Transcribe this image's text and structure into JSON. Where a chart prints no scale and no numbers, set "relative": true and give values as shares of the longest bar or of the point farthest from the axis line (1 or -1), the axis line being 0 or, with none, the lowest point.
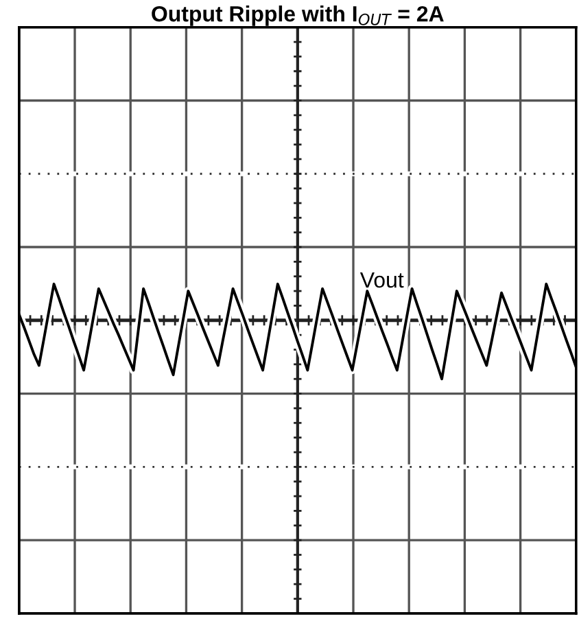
{
  "chart_data": {
    "type": "line",
    "title": "Output Ripple with I$_{OUT}$ = 2A",
    "relative": true,
    "grid": true,
    "categories": [
      null,
      null,
      null,
      null,
      null,
      null,
      null,
      null,
      null,
      null,
      null,
      null,
      null,
      null,
      null,
      null,
      null,
      null,
      null,
      null,
      null,
      null,
      null,
      null,
      null,
      null,
      null,
      null,
      null,
      null,
      null,
      null,
      null,
      null,
      null,
      null,
      null,
      null,
      null,
      null,
      null,
      null,
      null,
      null,
      null,
      null,
      null,
      null,
      null,
      null,
      null,
      null,
      null,
      null,
      null,
      null,
      null,
      null,
      null,
      null,
      null,
      null,
      null,
      null,
      null,
      null,
      null,
      null,
      null,
      null,
      null,
      null,
      null,
      null,
      null,
      null,
      null,
      null,
      null,
      null,
      null,
      null,
      null,
      null,
      null,
      null,
      null,
      null,
      null,
      null,
      null,
      null,
      null,
      null,
      null,
      null,
      null,
      null,
      null,
      null,
      null,
      null,
      null,
      null,
      null,
      null,
      null,
      null,
      null,
      null,
      null,
      null,
      null
    ],
    "series": [
      {
        "color": "#000000",
        "values": [
          0.1,
          -0.12,
          -0.35,
          -0.58,
          -0.77,
          -0.31,
          0.16,
          0.62,
          0.38,
          0.13,
          -0.11,
          -0.36,
          -0.6,
          -0.85,
          -0.39,
          0.08,
          0.54,
          0.34,
          0.14,
          -0.06,
          -0.25,
          -0.45,
          -0.65,
          -0.85,
          -0.15,
          0.54,
          0.3,
          0.05,
          -0.2,
          -0.44,
          -0.69,
          -0.93,
          -0.45,
          0.02,
          0.5,
          0.29,
          0.08,
          -0.14,
          -0.35,
          -0.56,
          -0.77,
          -0.33,
          0.1,
          0.54,
          0.31,
          0.08,
          -0.16,
          -0.39,
          -0.62,
          -0.85,
          -0.36,
          0.13,
          0.62,
          0.38,
          0.13,
          -0.11,
          -0.36,
          -0.6,
          -0.85,
          -0.39,
          0.08,
          0.54,
          0.31,
          0.08,
          -0.16,
          -0.39,
          -0.62,
          -0.85,
          -0.4,
          0.05,
          0.5,
          0.28,
          0.05,
          -0.18,
          -0.4,
          -0.63,
          -0.85,
          -0.39,
          0.08,
          0.54,
          0.28,
          0.03,
          -0.23,
          -0.49,
          -0.74,
          -1.0,
          -0.5,
          0.0,
          0.5,
          0.29,
          0.08,
          -0.14,
          -0.35,
          -0.56,
          -0.77,
          -0.36,
          0.06,
          0.47,
          0.25,
          0.03,
          -0.19,
          -0.41,
          -0.63,
          -0.85,
          -0.36,
          0.13,
          0.62,
          0.38,
          0.15,
          -0.09,
          -0.33,
          -0.56,
          -0.8
        ]
      }
    ],
    "annotations": [
      "Vout"
    ]
  }
}
